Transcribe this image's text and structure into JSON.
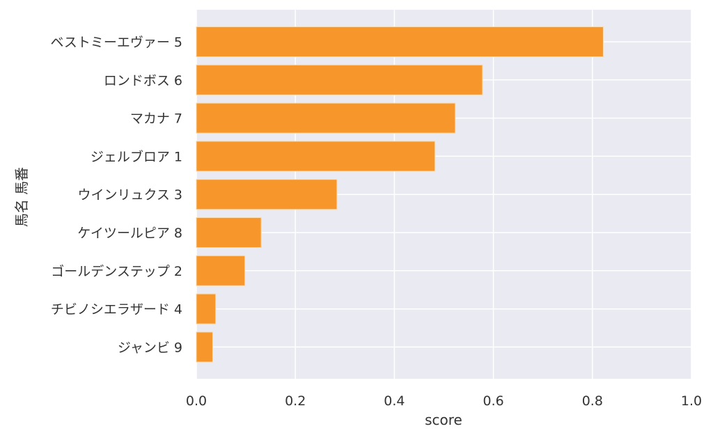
{
  "chart_data": {
    "type": "bar",
    "orientation": "horizontal",
    "categories": [
      "ベストミーエヴァー 5",
      "ロンドボス 6",
      "マカナ 7",
      "ジェルブロア 1",
      "ウインリュクス 3",
      "ケイツールピア 8",
      "ゴールデンステップ 2",
      "チビノシエラザード 4",
      "ジャンビ 9"
    ],
    "values": [
      0.822,
      0.578,
      0.523,
      0.482,
      0.284,
      0.131,
      0.098,
      0.039,
      0.033
    ],
    "xlabel": "score",
    "ylabel": "馬名 馬番",
    "xlim": [
      0.0,
      1.0
    ],
    "xticks": [
      "0.0",
      "0.2",
      "0.4",
      "0.6",
      "0.8",
      "1.0"
    ],
    "grid": true,
    "colors": {
      "bar": "#f7962a",
      "bar_edge": "#fbd9a8",
      "plot_background": "#eaeaf2",
      "grid": "#ffffff"
    }
  }
}
